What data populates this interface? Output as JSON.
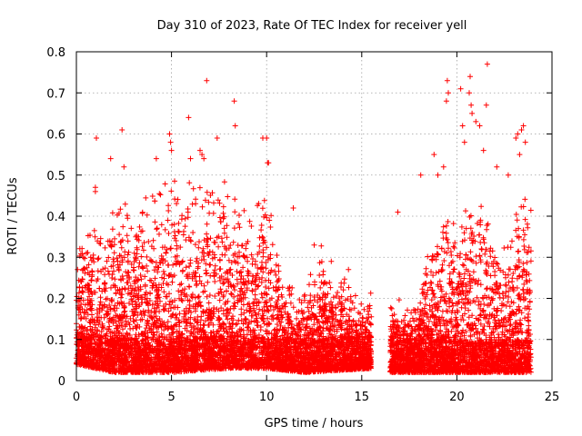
{
  "chart_data": {
    "type": "scatter",
    "title": "Day 310 of 2023, Rate Of TEC Index for receiver yell",
    "xlabel": "GPS time / hours",
    "ylabel": "ROTI / TECUs",
    "xlim": [
      0,
      25
    ],
    "ylim": [
      0,
      0.8
    ],
    "xticks": [
      0,
      5,
      10,
      15,
      20,
      25
    ],
    "xtick_labels": [
      "0",
      "5",
      "10",
      "15",
      "20",
      "25"
    ],
    "yticks": [
      0,
      0.1,
      0.2,
      0.3,
      0.4,
      0.5,
      0.6,
      0.7,
      0.8
    ],
    "ytick_labels": [
      "0",
      "0.1",
      "0.2",
      "0.3",
      "0.4",
      "0.5",
      "0.6",
      "0.7",
      "0.8"
    ],
    "grid": true,
    "marker": "+",
    "color": "#ff0000",
    "series": [
      {
        "name": "ROTI",
        "envelope_segments": [
          {
            "x_start": 0.0,
            "x_end": 15.5,
            "upper": [
              [
                0,
                0.3
              ],
              [
                0.5,
                0.33
              ],
              [
                1.0,
                0.35
              ],
              [
                1.5,
                0.33
              ],
              [
                2.0,
                0.38
              ],
              [
                2.5,
                0.45
              ],
              [
                3.0,
                0.35
              ],
              [
                3.5,
                0.4
              ],
              [
                4.0,
                0.42
              ],
              [
                4.5,
                0.45
              ],
              [
                5.0,
                0.48
              ],
              [
                5.5,
                0.42
              ],
              [
                6.0,
                0.45
              ],
              [
                6.5,
                0.48
              ],
              [
                7.0,
                0.45
              ],
              [
                7.5,
                0.42
              ],
              [
                8.0,
                0.47
              ],
              [
                8.5,
                0.4
              ],
              [
                9.0,
                0.38
              ],
              [
                9.5,
                0.42
              ],
              [
                10.0,
                0.45
              ],
              [
                10.5,
                0.3
              ],
              [
                11.0,
                0.22
              ],
              [
                11.5,
                0.2
              ],
              [
                12.0,
                0.22
              ],
              [
                12.5,
                0.26
              ],
              [
                13.0,
                0.3
              ],
              [
                13.5,
                0.22
              ],
              [
                14.0,
                0.25
              ],
              [
                14.5,
                0.2
              ],
              [
                15.0,
                0.18
              ],
              [
                15.5,
                0.2
              ]
            ],
            "lower": [
              [
                0,
                0.04
              ],
              [
                2,
                0.02
              ],
              [
                5,
                0.02
              ],
              [
                8,
                0.03
              ],
              [
                10,
                0.03
              ],
              [
                12,
                0.02
              ],
              [
                15.5,
                0.03
              ]
            ]
          },
          {
            "x_start": 16.5,
            "x_end": 23.9,
            "upper": [
              [
                16.5,
                0.18
              ],
              [
                17.0,
                0.18
              ],
              [
                17.5,
                0.16
              ],
              [
                18.0,
                0.2
              ],
              [
                18.5,
                0.3
              ],
              [
                19.0,
                0.32
              ],
              [
                19.5,
                0.4
              ],
              [
                20.0,
                0.35
              ],
              [
                20.5,
                0.45
              ],
              [
                21.0,
                0.42
              ],
              [
                21.5,
                0.4
              ],
              [
                22.0,
                0.35
              ],
              [
                22.5,
                0.3
              ],
              [
                23.0,
                0.38
              ],
              [
                23.5,
                0.45
              ],
              [
                23.9,
                0.4
              ]
            ],
            "lower": [
              [
                16.5,
                0.02
              ],
              [
                18,
                0.02
              ],
              [
                20,
                0.02
              ],
              [
                22,
                0.02
              ],
              [
                23.9,
                0.02
              ]
            ]
          }
        ],
        "outliers": [
          [
            1.05,
            0.59
          ],
          [
            1.0,
            0.47
          ],
          [
            1.0,
            0.46
          ],
          [
            2.4,
            0.61
          ],
          [
            2.5,
            0.52
          ],
          [
            1.8,
            0.54
          ],
          [
            4.2,
            0.54
          ],
          [
            4.9,
            0.6
          ],
          [
            4.95,
            0.58
          ],
          [
            5.0,
            0.56
          ],
          [
            5.9,
            0.64
          ],
          [
            6.0,
            0.54
          ],
          [
            6.5,
            0.56
          ],
          [
            6.6,
            0.55
          ],
          [
            6.7,
            0.54
          ],
          [
            6.85,
            0.73
          ],
          [
            8.3,
            0.68
          ],
          [
            8.35,
            0.62
          ],
          [
            7.4,
            0.59
          ],
          [
            9.8,
            0.59
          ],
          [
            10.0,
            0.59
          ],
          [
            10.05,
            0.53
          ],
          [
            10.1,
            0.53
          ],
          [
            11.4,
            0.42
          ],
          [
            12.5,
            0.33
          ],
          [
            13.4,
            0.29
          ],
          [
            14.3,
            0.27
          ],
          [
            16.9,
            0.41
          ],
          [
            18.1,
            0.5
          ],
          [
            18.8,
            0.55
          ],
          [
            19.5,
            0.73
          ],
          [
            19.55,
            0.7
          ],
          [
            19.45,
            0.68
          ],
          [
            20.2,
            0.71
          ],
          [
            20.3,
            0.62
          ],
          [
            20.4,
            0.58
          ],
          [
            20.7,
            0.74
          ],
          [
            20.65,
            0.7
          ],
          [
            20.75,
            0.67
          ],
          [
            20.8,
            0.65
          ],
          [
            21.0,
            0.63
          ],
          [
            21.2,
            0.62
          ],
          [
            21.6,
            0.77
          ],
          [
            21.55,
            0.67
          ],
          [
            21.4,
            0.56
          ],
          [
            22.1,
            0.52
          ],
          [
            22.7,
            0.5
          ],
          [
            23.1,
            0.59
          ],
          [
            23.2,
            0.6
          ],
          [
            23.4,
            0.61
          ],
          [
            23.5,
            0.62
          ],
          [
            23.3,
            0.55
          ],
          [
            19.0,
            0.5
          ],
          [
            19.3,
            0.52
          ],
          [
            23.6,
            0.58
          ]
        ]
      }
    ]
  }
}
